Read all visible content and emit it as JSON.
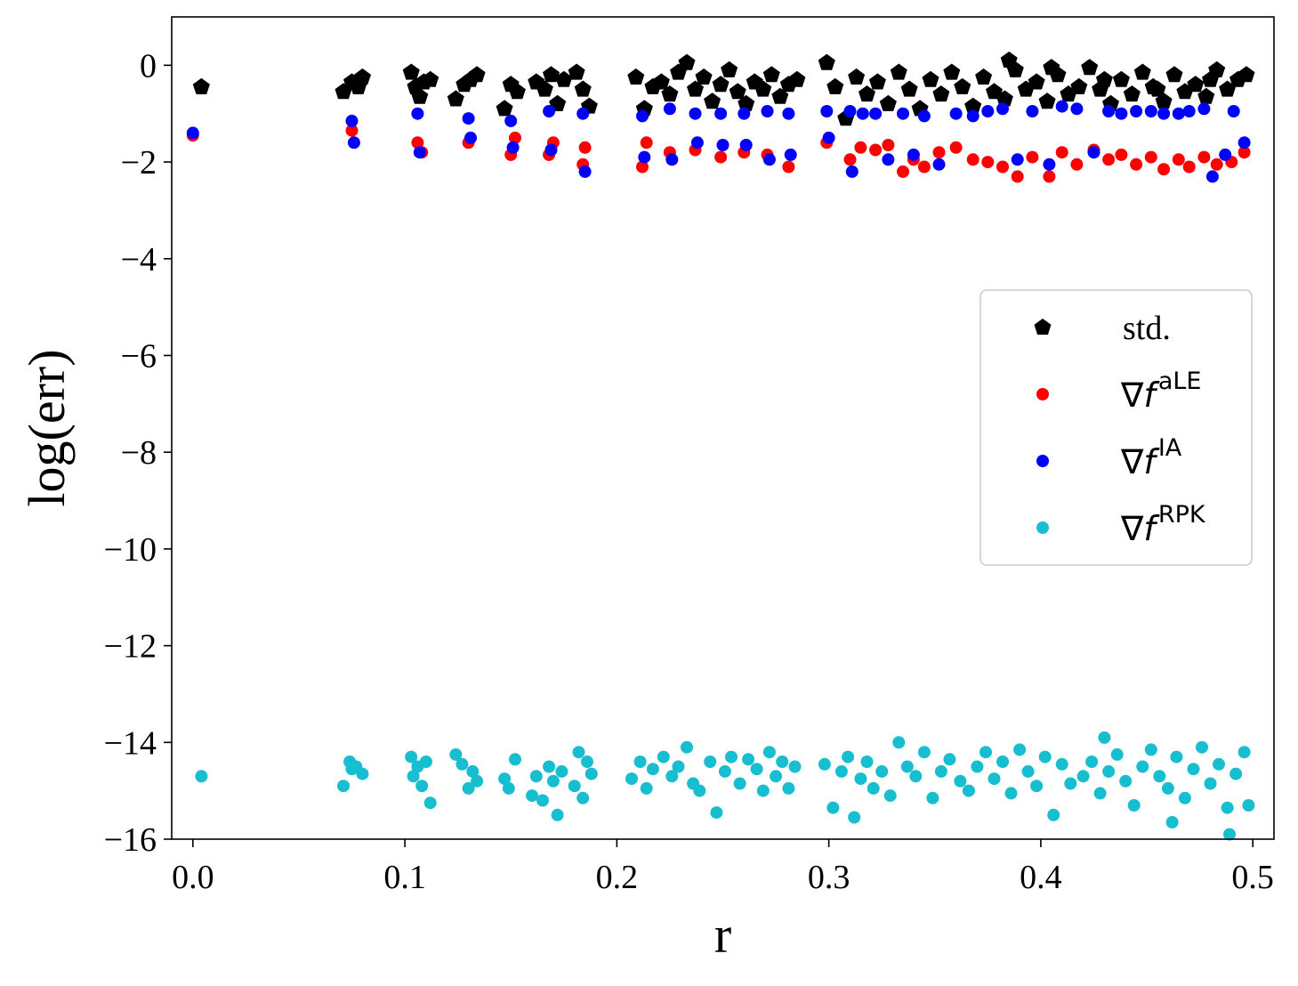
{
  "chart_data": {
    "type": "scatter",
    "title": "",
    "xlabel": "r",
    "ylabel": "log(err)",
    "xlim": [
      -0.01,
      0.51
    ],
    "ylim": [
      -16,
      1
    ],
    "grid": false,
    "legend_position": "center-right",
    "x_ticks": [
      0.0,
      0.1,
      0.2,
      0.3,
      0.4,
      0.5
    ],
    "x_tick_labels": [
      "0.0",
      "0.1",
      "0.2",
      "0.3",
      "0.4",
      "0.5"
    ],
    "y_ticks": [
      0,
      -2,
      -4,
      -6,
      -8,
      -10,
      -12,
      -14,
      -16
    ],
    "y_tick_labels": [
      "0",
      "−2",
      "−4",
      "−6",
      "−8",
      "−10",
      "−12",
      "−14",
      "−16"
    ],
    "series": [
      {
        "name": "std.",
        "legend_text": "std.",
        "marker": "pentagon",
        "color": "#000000",
        "x": [
          0.004,
          0.071,
          0.075,
          0.078,
          0.08,
          0.103,
          0.105,
          0.107,
          0.109,
          0.112,
          0.124,
          0.128,
          0.131,
          0.134,
          0.147,
          0.15,
          0.153,
          0.162,
          0.166,
          0.169,
          0.172,
          0.175,
          0.181,
          0.184,
          0.187,
          0.209,
          0.213,
          0.217,
          0.221,
          0.225,
          0.229,
          0.233,
          0.237,
          0.241,
          0.245,
          0.249,
          0.253,
          0.257,
          0.261,
          0.265,
          0.269,
          0.273,
          0.277,
          0.281,
          0.285,
          0.299,
          0.303,
          0.308,
          0.313,
          0.318,
          0.323,
          0.328,
          0.333,
          0.338,
          0.343,
          0.348,
          0.353,
          0.358,
          0.363,
          0.368,
          0.373,
          0.378,
          0.383,
          0.388,
          0.393,
          0.398,
          0.403,
          0.408,
          0.413,
          0.418,
          0.423,
          0.428,
          0.433,
          0.438,
          0.443,
          0.448,
          0.453,
          0.458,
          0.463,
          0.468,
          0.473,
          0.478,
          0.483,
          0.488,
          0.493,
          0.497,
          0.385,
          0.405,
          0.43,
          0.455,
          0.48
        ],
        "y": [
          -0.45,
          -0.55,
          -0.35,
          -0.45,
          -0.25,
          -0.15,
          -0.45,
          -0.65,
          -0.35,
          -0.3,
          -0.7,
          -0.4,
          -0.3,
          -0.2,
          -0.9,
          -0.4,
          -0.55,
          -0.35,
          -0.5,
          -0.2,
          -0.8,
          -0.3,
          -0.15,
          -0.5,
          -0.85,
          -0.25,
          -0.9,
          -0.45,
          -0.35,
          -0.6,
          -0.15,
          0.05,
          -0.5,
          -0.25,
          -0.75,
          -0.4,
          -0.1,
          -0.55,
          -0.8,
          -0.35,
          -0.5,
          -0.2,
          -0.65,
          -0.4,
          -0.3,
          0.05,
          -0.45,
          -1.1,
          -0.25,
          -0.6,
          -0.35,
          -0.8,
          -0.15,
          -0.5,
          -0.9,
          -0.3,
          -0.6,
          -0.15,
          -0.45,
          -0.85,
          -0.25,
          -0.55,
          -0.7,
          -0.1,
          -0.5,
          -0.35,
          -0.75,
          -0.2,
          -0.6,
          -0.45,
          -0.05,
          -0.5,
          -0.8,
          -0.3,
          -0.6,
          -0.15,
          -0.45,
          -0.75,
          -0.2,
          -0.55,
          -0.4,
          -0.65,
          -0.1,
          -0.5,
          -0.3,
          -0.2,
          0.1,
          -0.05,
          -0.3,
          -0.5,
          -0.3
        ]
      },
      {
        "name": "∇f^aLE",
        "legend_text": "aLE",
        "marker": "circle",
        "color": "#ff0000",
        "x": [
          0.0,
          0.075,
          0.106,
          0.108,
          0.13,
          0.15,
          0.152,
          0.168,
          0.17,
          0.184,
          0.185,
          0.212,
          0.214,
          0.225,
          0.237,
          0.249,
          0.26,
          0.271,
          0.281,
          0.299,
          0.31,
          0.315,
          0.322,
          0.328,
          0.335,
          0.34,
          0.345,
          0.352,
          0.36,
          0.368,
          0.375,
          0.382,
          0.389,
          0.396,
          0.404,
          0.41,
          0.417,
          0.425,
          0.432,
          0.438,
          0.445,
          0.452,
          0.458,
          0.465,
          0.47,
          0.477,
          0.483,
          0.49,
          0.496
        ],
        "y": [
          -1.45,
          -1.35,
          -1.6,
          -1.8,
          -1.6,
          -1.85,
          -1.5,
          -1.85,
          -1.6,
          -2.05,
          -1.7,
          -2.1,
          -1.6,
          -1.8,
          -1.75,
          -1.9,
          -1.8,
          -1.85,
          -2.1,
          -1.6,
          -1.95,
          -1.7,
          -1.75,
          -1.65,
          -2.2,
          -1.95,
          -2.1,
          -1.8,
          -1.7,
          -1.95,
          -2.0,
          -2.1,
          -2.3,
          -1.9,
          -2.3,
          -1.8,
          -2.05,
          -1.75,
          -1.95,
          -1.85,
          -2.05,
          -1.9,
          -2.15,
          -1.95,
          -2.1,
          -1.9,
          -2.05,
          -2.0,
          -1.8
        ]
      },
      {
        "name": "∇f^IA",
        "legend_text": "IA",
        "marker": "circle",
        "color": "#0000ff",
        "x": [
          0.0,
          0.075,
          0.076,
          0.106,
          0.107,
          0.13,
          0.131,
          0.15,
          0.151,
          0.168,
          0.169,
          0.184,
          0.185,
          0.212,
          0.213,
          0.225,
          0.226,
          0.237,
          0.238,
          0.249,
          0.25,
          0.26,
          0.261,
          0.271,
          0.272,
          0.281,
          0.282,
          0.299,
          0.3,
          0.31,
          0.311,
          0.316,
          0.322,
          0.328,
          0.335,
          0.34,
          0.345,
          0.352,
          0.36,
          0.368,
          0.375,
          0.382,
          0.389,
          0.396,
          0.404,
          0.41,
          0.417,
          0.425,
          0.432,
          0.438,
          0.445,
          0.452,
          0.458,
          0.465,
          0.47,
          0.477,
          0.481,
          0.487,
          0.491,
          0.496
        ],
        "y": [
          -1.4,
          -1.15,
          -1.6,
          -1.0,
          -1.8,
          -1.1,
          -1.5,
          -1.15,
          -1.7,
          -0.95,
          -1.75,
          -1.0,
          -2.2,
          -1.05,
          -1.9,
          -0.9,
          -1.95,
          -1.0,
          -1.6,
          -1.0,
          -1.65,
          -1.0,
          -1.65,
          -0.95,
          -1.95,
          -1.0,
          -1.85,
          -0.95,
          -1.5,
          -0.95,
          -2.2,
          -1.0,
          -1.0,
          -1.95,
          -1.0,
          -1.85,
          -1.05,
          -2.05,
          -1.0,
          -1.05,
          -0.95,
          -0.9,
          -1.95,
          -0.95,
          -2.05,
          -0.85,
          -0.9,
          -1.8,
          -0.95,
          -1.0,
          -0.95,
          -0.95,
          -1.0,
          -1.0,
          -0.95,
          -0.9,
          -2.3,
          -1.85,
          -0.95,
          -1.6
        ]
      },
      {
        "name": "∇f^RPK",
        "legend_text": "RPK",
        "marker": "circle",
        "color": "#17becf",
        "x": [
          0.004,
          0.071,
          0.074,
          0.075,
          0.077,
          0.08,
          0.103,
          0.104,
          0.106,
          0.108,
          0.11,
          0.112,
          0.124,
          0.127,
          0.13,
          0.132,
          0.134,
          0.147,
          0.149,
          0.152,
          0.16,
          0.162,
          0.165,
          0.168,
          0.17,
          0.172,
          0.174,
          0.18,
          0.182,
          0.184,
          0.186,
          0.188,
          0.207,
          0.211,
          0.214,
          0.217,
          0.222,
          0.226,
          0.229,
          0.233,
          0.236,
          0.239,
          0.244,
          0.247,
          0.251,
          0.254,
          0.258,
          0.262,
          0.266,
          0.269,
          0.272,
          0.275,
          0.278,
          0.281,
          0.284,
          0.298,
          0.302,
          0.306,
          0.309,
          0.312,
          0.315,
          0.318,
          0.321,
          0.325,
          0.329,
          0.333,
          0.337,
          0.341,
          0.345,
          0.349,
          0.353,
          0.357,
          0.362,
          0.366,
          0.37,
          0.374,
          0.378,
          0.382,
          0.386,
          0.39,
          0.394,
          0.398,
          0.402,
          0.406,
          0.41,
          0.414,
          0.42,
          0.424,
          0.428,
          0.432,
          0.436,
          0.44,
          0.444,
          0.448,
          0.452,
          0.456,
          0.46,
          0.464,
          0.468,
          0.472,
          0.476,
          0.48,
          0.484,
          0.488,
          0.492,
          0.496,
          0.498,
          0.43,
          0.462,
          0.489
        ],
        "y": [
          -14.7,
          -14.9,
          -14.4,
          -14.55,
          -14.5,
          -14.65,
          -14.3,
          -14.7,
          -14.5,
          -14.9,
          -14.4,
          -15.25,
          -14.25,
          -14.45,
          -14.95,
          -14.6,
          -14.8,
          -14.75,
          -14.95,
          -14.35,
          -15.1,
          -14.7,
          -15.2,
          -14.5,
          -14.8,
          -15.5,
          -14.6,
          -14.9,
          -14.2,
          -15.15,
          -14.4,
          -14.65,
          -14.75,
          -14.4,
          -14.95,
          -14.55,
          -14.3,
          -14.7,
          -14.5,
          -14.1,
          -14.85,
          -15.0,
          -14.4,
          -15.45,
          -14.6,
          -14.3,
          -14.85,
          -14.35,
          -14.55,
          -15.0,
          -14.2,
          -14.7,
          -14.4,
          -14.95,
          -14.5,
          -14.45,
          -15.35,
          -14.6,
          -14.3,
          -15.55,
          -14.75,
          -14.4,
          -14.95,
          -14.6,
          -15.1,
          -14.0,
          -14.5,
          -14.7,
          -14.2,
          -15.15,
          -14.6,
          -14.35,
          -14.8,
          -15.0,
          -14.5,
          -14.2,
          -14.75,
          -14.4,
          -15.05,
          -14.15,
          -14.6,
          -14.9,
          -14.3,
          -15.5,
          -14.45,
          -14.85,
          -14.7,
          -14.4,
          -15.05,
          -14.6,
          -14.25,
          -14.8,
          -15.3,
          -14.5,
          -14.15,
          -14.7,
          -14.95,
          -14.3,
          -15.15,
          -14.55,
          -14.1,
          -14.85,
          -14.45,
          -15.35,
          -14.65,
          -14.2,
          -15.3,
          -13.9,
          -15.65,
          -15.9
        ]
      }
    ]
  }
}
